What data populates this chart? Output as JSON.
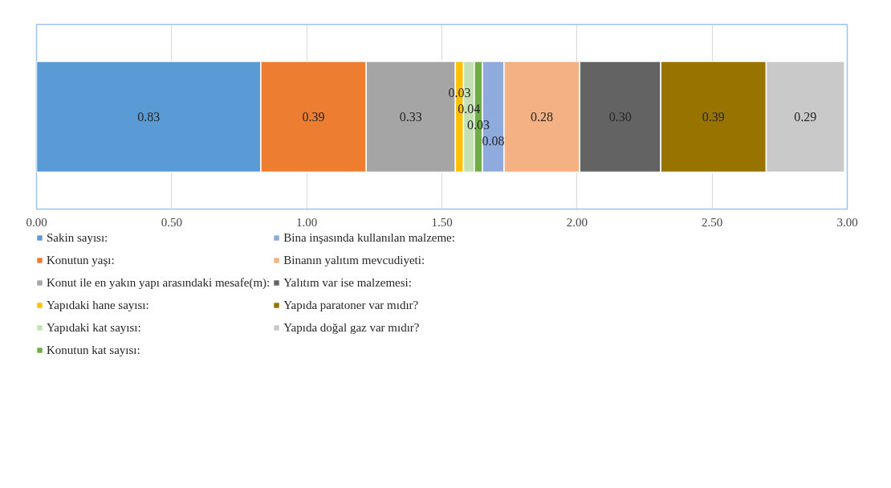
{
  "chart_data": {
    "type": "bar",
    "orientation": "horizontal",
    "stacked": true,
    "categories": [
      null
    ],
    "series": [
      {
        "name": "Sakin sayısı:",
        "color": "#5b9bd5",
        "values": [
          0.83
        ],
        "value_labels": [
          "0.83"
        ]
      },
      {
        "name": "Konutun yaşı:",
        "color": "#ed7d31",
        "values": [
          0.39
        ],
        "value_labels": [
          "0.39"
        ]
      },
      {
        "name": "Konut ile en yakın yapı arasındaki mesafe(m):",
        "color": "#a5a5a5",
        "values": [
          0.33
        ],
        "value_labels": [
          "0.33"
        ]
      },
      {
        "name": "Yapıdaki hane sayısı:",
        "color": "#ffc000",
        "values": [
          0.03
        ],
        "value_labels": [
          "0.03"
        ]
      },
      {
        "name": "Yapıdaki kat sayısı:",
        "color": "#c5e0b4",
        "values": [
          0.04
        ],
        "value_labels": [
          "0.04"
        ]
      },
      {
        "name": "Konutun kat sayısı:",
        "color": "#70ad47",
        "values": [
          0.03
        ],
        "value_labels": [
          "0.03"
        ]
      },
      {
        "name": "Bina inşasında kullanılan malzeme:",
        "color": "#8faadc",
        "values": [
          0.08
        ],
        "value_labels": [
          "0.08"
        ]
      },
      {
        "name": "Binanın yalıtım mevcudiyeti:",
        "color": "#f4b183",
        "values": [
          0.28
        ],
        "value_labels": [
          "0.28"
        ]
      },
      {
        "name": "Yalıtım var ise malzemesi:",
        "color": "#636363",
        "values": [
          0.3
        ],
        "value_labels": [
          "0.30"
        ]
      },
      {
        "name": "Yapıda paratoner var mıdır?",
        "color": "#997300",
        "values": [
          0.39
        ],
        "value_labels": [
          "0.39"
        ]
      },
      {
        "name": "Yapıda doğal gaz var mıdır?",
        "color": "#c9c9c9",
        "values": [
          0.29
        ],
        "value_labels": [
          "0.29"
        ]
      }
    ],
    "xlim": [
      0,
      3
    ],
    "xticks": [
      {
        "value": 0,
        "label": "0.00"
      },
      {
        "value": 0.5,
        "label": "0.50"
      },
      {
        "value": 1,
        "label": "1.00"
      },
      {
        "value": 1.5,
        "label": "1.50"
      },
      {
        "value": 2,
        "label": "2.00"
      },
      {
        "value": 2.5,
        "label": "2.50"
      },
      {
        "value": 3,
        "label": "3.00"
      }
    ],
    "tick_labels": "x",
    "grid": "x",
    "legend": "bottom"
  }
}
